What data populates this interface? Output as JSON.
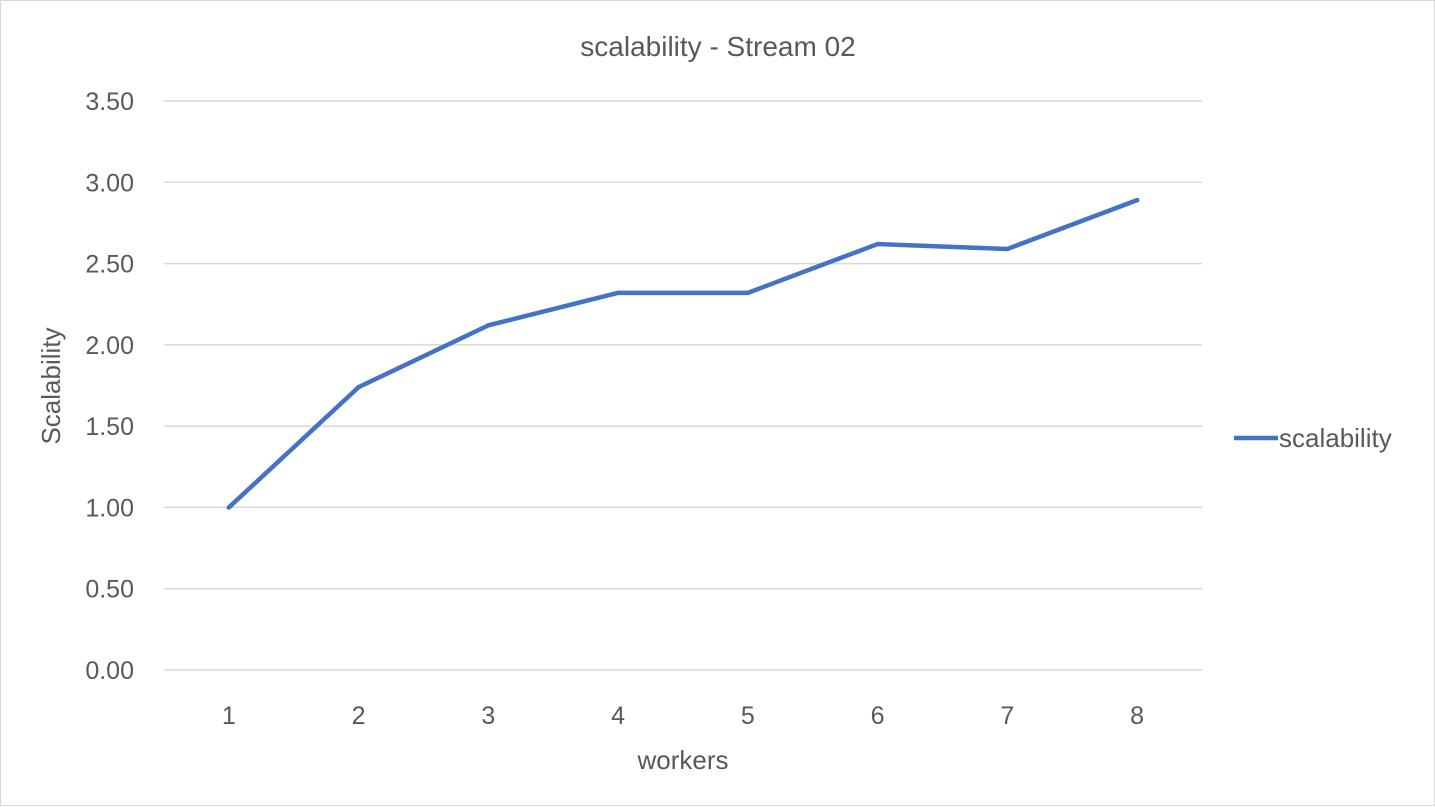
{
  "chart_data": {
    "type": "line",
    "title": "scalability - Stream 02",
    "xlabel": "workers",
    "ylabel": "Scalability",
    "categories": [
      "1",
      "2",
      "3",
      "4",
      "5",
      "6",
      "7",
      "8"
    ],
    "series": [
      {
        "name": "scalability",
        "color": "#4472c4",
        "values": [
          1.0,
          1.74,
          2.12,
          2.32,
          2.32,
          2.62,
          2.59,
          2.89
        ]
      }
    ],
    "ylim": [
      0,
      3.5
    ],
    "ytick_step": 0.5,
    "ytick_labels": [
      "0.00",
      "0.50",
      "1.00",
      "1.50",
      "2.00",
      "2.50",
      "3.00",
      "3.50"
    ],
    "grid": true,
    "legend_position": "right",
    "gridline_color": "#d9d9d9"
  }
}
